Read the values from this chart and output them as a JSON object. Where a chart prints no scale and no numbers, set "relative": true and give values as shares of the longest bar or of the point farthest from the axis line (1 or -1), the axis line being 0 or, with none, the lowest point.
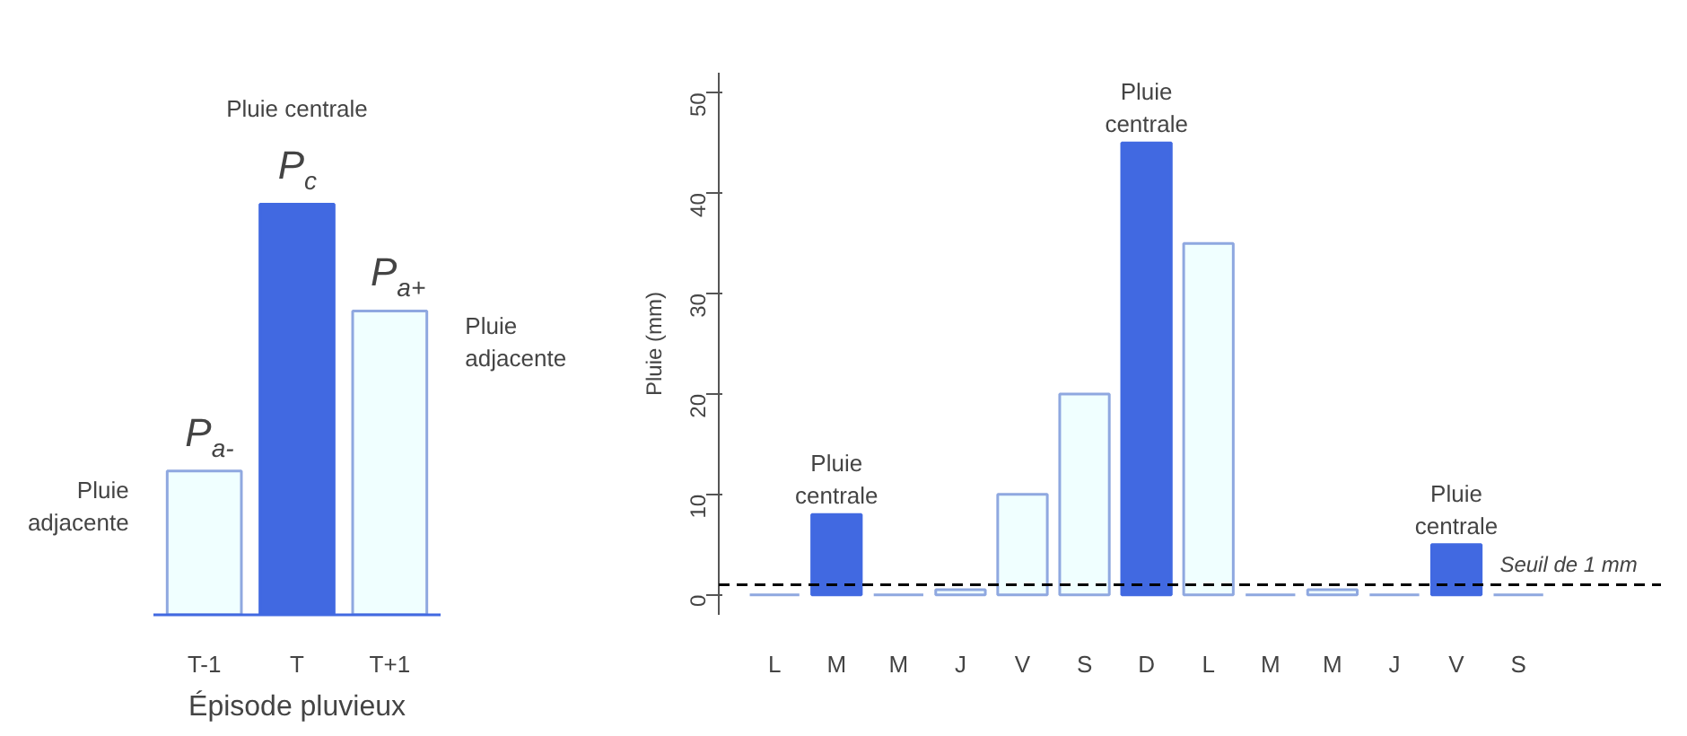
{
  "chart_data": [
    {
      "type": "bar",
      "relative": true,
      "categories": [
        "T-1",
        "T",
        "T+1"
      ],
      "values": [
        0.35,
        1,
        0.74
      ],
      "colors": [
        "#f0ffff",
        "#4169e1",
        "#f0ffff"
      ],
      "xlabel": "Épisode pluvieux",
      "tick_labels": "x",
      "grid": false,
      "annotations": [
        "Pluie centrale",
        "P$_{c}$",
        "P$_{a-}$",
        "P$_{a+}$",
        "Pluie adjacente",
        "Pluie adjacente"
      ]
    },
    {
      "type": "bar",
      "categories": [
        "L",
        "M",
        "M",
        "J",
        "V",
        "S",
        "D",
        "L",
        "M",
        "M",
        "J",
        "V",
        "S"
      ],
      "values": [
        0,
        8,
        0,
        0.5,
        10,
        20,
        45,
        35,
        0,
        0.5,
        0,
        5,
        0
      ],
      "colors": [
        "#8fa8e0",
        "#4169e1",
        "#8fa8e0",
        "#f0ffff",
        "#f0ffff",
        "#f0ffff",
        "#4169e1",
        "#f0ffff",
        "#8fa8e0",
        "#f0ffff",
        "#8fa8e0",
        "#4169e1",
        "#8fa8e0"
      ],
      "ylabel": "Pluie (mm)",
      "ylim": [
        -2,
        52
      ],
      "yticks": [
        0,
        10,
        20,
        30,
        40,
        50
      ],
      "grid": false,
      "ref_lines": [
        {
          "axis": "y",
          "value": 1,
          "label": "Seuil de 1 mm",
          "color": "#000000",
          "line_style": "dashed"
        }
      ],
      "annotations": [
        "Pluie\ncentrale",
        "Pluie\ncentrale",
        "Pluie\ncentrale"
      ]
    }
  ]
}
